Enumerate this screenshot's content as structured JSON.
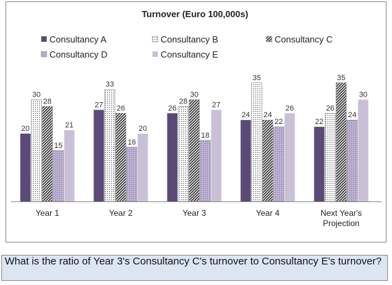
{
  "chart_data": {
    "type": "bar",
    "title": "Turnover (Euro 100,000s)",
    "xlabel": "",
    "ylabel": "",
    "ylim": [
      0,
      40
    ],
    "grid": false,
    "legend_position": "top",
    "categories": [
      "Year 1",
      "Year 2",
      "Year 3",
      "Year 4",
      "Next Year's Projection"
    ],
    "series": [
      {
        "name": "Consultancy A",
        "values": [
          20,
          27,
          26,
          24,
          22
        ],
        "color": "#5b4a78",
        "pattern": "solid"
      },
      {
        "name": "Consultancy B",
        "values": [
          30,
          33,
          28,
          35,
          26
        ],
        "color": "#6a6a6a",
        "pattern": "dots"
      },
      {
        "name": "Consultancy C",
        "values": [
          28,
          26,
          30,
          24,
          35
        ],
        "color": "#3d3d3d",
        "pattern": "diagonal"
      },
      {
        "name": "Consultancy D",
        "values": [
          15,
          16,
          18,
          22,
          24
        ],
        "color": "#a99cc4",
        "pattern": "grid"
      },
      {
        "name": "Consultancy E",
        "values": [
          21,
          20,
          27,
          26,
          30
        ],
        "color": "#c9c0d8",
        "pattern": "solid"
      }
    ]
  },
  "question": "What is the ratio of Year 3's Consultancy C's turnover to Consultancy E's turnover?"
}
